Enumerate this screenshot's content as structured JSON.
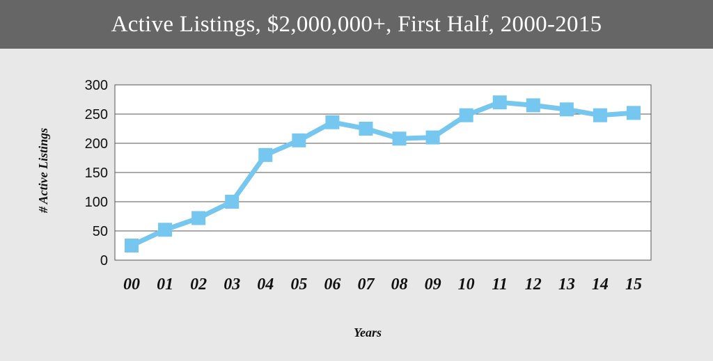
{
  "chart_data": {
    "type": "line",
    "title": "Active Listings, $2,000,000+, First Half, 2000-2015",
    "xlabel": "Years",
    "ylabel": "# Active Listings",
    "categories": [
      "00",
      "01",
      "02",
      "03",
      "04",
      "05",
      "06",
      "07",
      "08",
      "09",
      "10",
      "11",
      "12",
      "13",
      "14",
      "15"
    ],
    "series": [
      {
        "values": [
          25,
          52,
          72,
          100,
          180,
          205,
          236,
          225,
          208,
          210,
          248,
          270,
          265,
          258,
          248,
          252
        ]
      }
    ],
    "ylim": [
      0,
      300
    ],
    "yticks": [
      0,
      50,
      100,
      150,
      200,
      250,
      300
    ],
    "grid": true,
    "colors": {
      "line": "#75c7ef",
      "marker": "#75c7ef",
      "plot_bg": "#ffffff",
      "grid": "#555555",
      "title_bar": "#666666"
    }
  }
}
